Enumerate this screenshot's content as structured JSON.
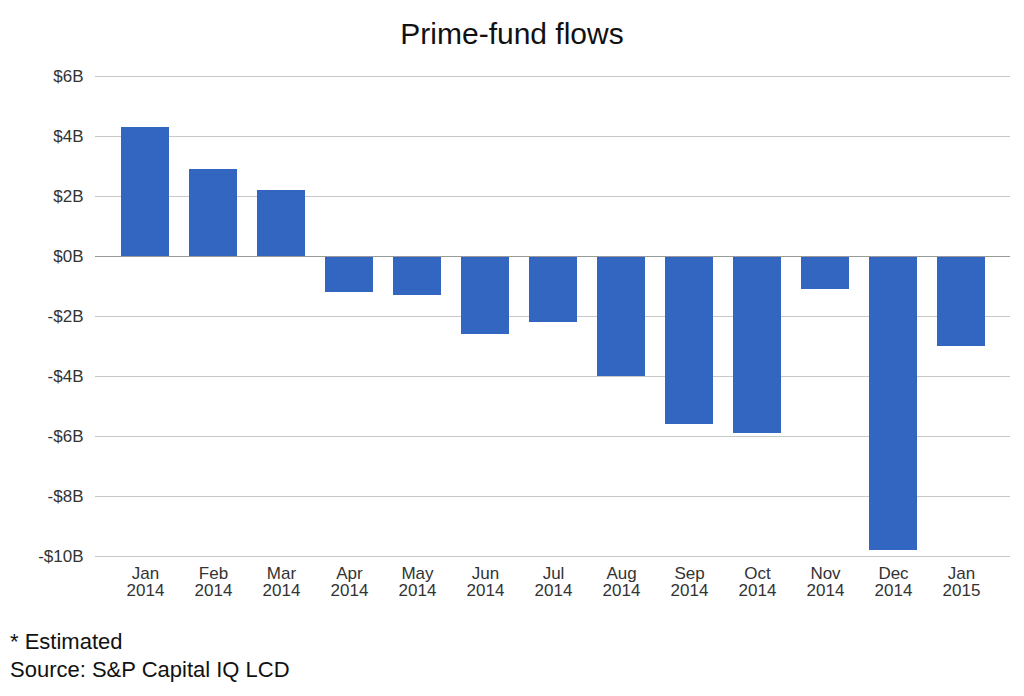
{
  "chart_data": {
    "type": "bar",
    "title": "Prime-fund flows",
    "categories": [
      "Jan 2014",
      "Feb 2014",
      "Mar 2014",
      "Apr 2014",
      "May 2014",
      "Jun 2014",
      "Jul 2014",
      "Aug 2014",
      "Sep 2014",
      "Oct 2014",
      "Nov 2014",
      "Dec 2014",
      "Jan 2015"
    ],
    "values": [
      4.3,
      2.9,
      2.2,
      -1.2,
      -1.3,
      -2.6,
      -2.2,
      -4.0,
      -5.6,
      -5.9,
      -1.1,
      -9.8,
      -3.0
    ],
    "color": "#3366c1",
    "ylim": [
      -10,
      6
    ],
    "yticks": [
      {
        "value": -10,
        "label": "-$10B"
      },
      {
        "value": -8,
        "label": "-$8B"
      },
      {
        "value": -6,
        "label": "-$6B"
      },
      {
        "value": -4,
        "label": "-$4B"
      },
      {
        "value": -2,
        "label": "-$2B"
      },
      {
        "value": 0,
        "label": "$0B"
      },
      {
        "value": 2,
        "label": "$2B"
      },
      {
        "value": 4,
        "label": "$4B"
      },
      {
        "value": 6,
        "label": "$6B"
      }
    ],
    "grid": true,
    "caption": [
      "* Estimated",
      "Source: S&P Capital IQ LCD"
    ]
  }
}
